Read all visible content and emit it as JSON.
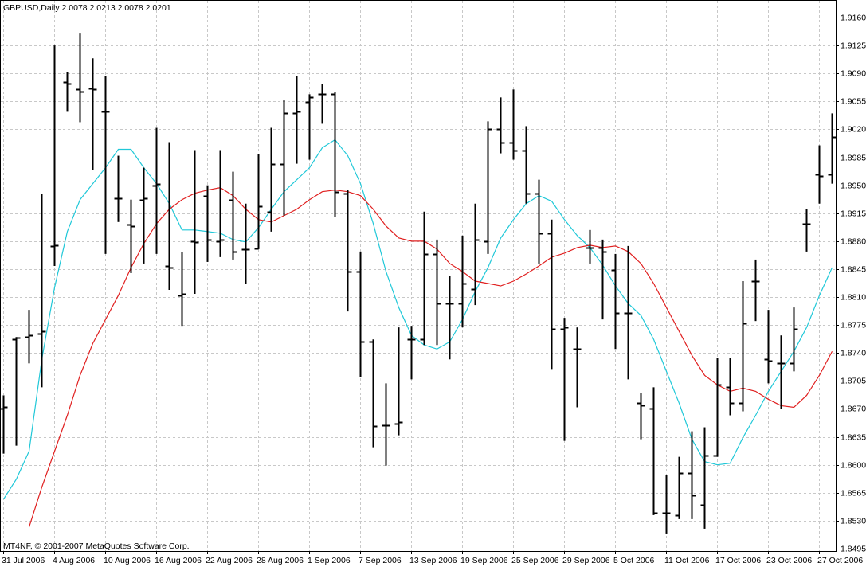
{
  "chart_data": {
    "type": "ohlc",
    "title": "GBPUSD,Daily  2.0078 2.0213 2.0078 2.0201",
    "credit": "MT4NF, © 2001-2007 MetaQuotes Software Corp.",
    "bar_color": "#000000",
    "grid": true,
    "categories": [
      "31 Jul 2006",
      null,
      null,
      null,
      "4 Aug 2006",
      null,
      null,
      null,
      "10 Aug 2006",
      null,
      null,
      null,
      "16 Aug 2006",
      null,
      null,
      null,
      "22 Aug 2006",
      null,
      null,
      null,
      "28 Aug 2006",
      null,
      null,
      null,
      "1 Sep 2006",
      null,
      null,
      null,
      "7 Sep 2006",
      null,
      null,
      null,
      "13 Sep 2006",
      null,
      null,
      null,
      "19 Sep 2006",
      null,
      null,
      null,
      "25 Sep 2006",
      null,
      null,
      null,
      "29 Sep 2006",
      null,
      null,
      null,
      "5 Oct 2006",
      null,
      null,
      null,
      "11 Oct 2006",
      null,
      null,
      null,
      "17 Oct 2006",
      null,
      null,
      null,
      "23 Oct 2006",
      null,
      null,
      null,
      "27 Oct 2006",
      null
    ],
    "open": [
      1.867,
      1.8757,
      1.876,
      1.8764,
      1.8874,
      1.9079,
      1.907,
      1.9071,
      1.9042,
      1.8934,
      1.8901,
      1.8932,
      1.895,
      1.8849,
      1.8812,
      1.888,
      1.8937,
      1.888,
      1.8932,
      1.887,
      1.8871,
      1.8917,
      1.8977,
      1.904,
      1.9054,
      1.9064,
      1.9064,
      1.894,
      1.8842,
      1.8754,
      1.865,
      1.8652,
      1.8757,
      1.8757,
      1.8864,
      1.8802,
      1.8802,
      1.882,
      1.888,
      1.902,
      1.9004,
      1.8994,
      1.894,
      1.889,
      1.877,
      1.8745,
      1.8872,
      1.8872,
      1.8844,
      1.879,
      1.8677,
      1.867,
      1.854,
      1.8537,
      1.859,
      1.855,
      1.8612,
      1.8697,
      1.8677,
      1.883,
      1.8732,
      1.8727,
      1.8727,
      1.8902,
      1.8964,
      1.8964
    ],
    "high": [
      1.8687,
      1.876,
      1.8794,
      1.8939,
      1.9125,
      1.9092,
      1.914,
      1.9109,
      1.9087,
      1.8987,
      1.8932,
      1.8972,
      1.9022,
      1.9004,
      1.8866,
      1.8994,
      1.895,
      1.8994,
      1.8967,
      1.8927,
      1.8989,
      1.9022,
      1.9057,
      1.9087,
      1.9064,
      1.9077,
      1.9067,
      1.8944,
      1.8867,
      1.8757,
      1.8702,
      1.8772,
      1.8774,
      1.8917,
      1.8882,
      1.8837,
      1.8887,
      1.8927,
      1.903,
      1.906,
      1.907,
      1.9024,
      1.8957,
      1.8907,
      1.8784,
      1.8772,
      1.8894,
      1.8882,
      1.8864,
      1.8874,
      1.869,
      1.8697,
      1.8587,
      1.861,
      1.8642,
      1.8647,
      1.8734,
      1.8734,
      1.883,
      1.8857,
      1.8794,
      1.8762,
      1.8797,
      1.892,
      1.9,
      1.904
    ],
    "low": [
      1.8614,
      1.8624,
      1.8727,
      1.8697,
      1.8849,
      1.9042,
      1.9029,
      1.8969,
      1.8864,
      1.8904,
      1.884,
      1.8852,
      1.8864,
      1.8819,
      1.8774,
      1.8814,
      1.8854,
      1.886,
      1.8857,
      1.8827,
      1.887,
      1.8892,
      1.8912,
      1.8977,
      1.8982,
      1.9027,
      1.891,
      1.8792,
      1.871,
      1.8622,
      1.8599,
      1.8637,
      1.8707,
      1.875,
      1.875,
      1.8732,
      1.8772,
      1.88,
      1.8864,
      1.899,
      1.8982,
      1.8927,
      1.8852,
      1.872,
      1.863,
      1.8672,
      1.8852,
      1.8782,
      1.8745,
      1.8707,
      1.8632,
      1.8537,
      1.8514,
      1.8532,
      1.8532,
      1.852,
      1.861,
      1.8662,
      1.8667,
      1.878,
      1.8702,
      1.867,
      1.8717,
      1.8867,
      1.8927,
      1.8952
    ],
    "close": [
      1.8672,
      1.8759,
      1.8762,
      1.8767,
      1.8875,
      1.9077,
      1.9067,
      1.907,
      1.9042,
      1.8934,
      1.8899,
      1.8934,
      1.8952,
      1.8847,
      1.8814,
      1.8879,
      1.8882,
      1.8882,
      1.8867,
      1.887,
      1.8924,
      1.8977,
      1.904,
      1.9042,
      1.906,
      1.9064,
      1.8942,
      1.8842,
      1.8754,
      1.8649,
      1.865,
      1.8654,
      1.8757,
      1.8864,
      1.8802,
      1.8802,
      1.8827,
      1.8882,
      1.902,
      1.9004,
      1.8994,
      1.894,
      1.889,
      1.877,
      1.8772,
      1.8745,
      1.8872,
      1.8867,
      1.879,
      1.879,
      1.8674,
      1.854,
      1.854,
      1.859,
      1.8562,
      1.8612,
      1.87,
      1.8677,
      1.8777,
      1.883,
      1.873,
      1.8727,
      1.877,
      1.8902,
      1.8962,
      1.901
    ],
    "lines": [
      {
        "color": "#20c8d8",
        "values": [
          1.8557,
          1.8582,
          1.8617,
          1.8732,
          1.8822,
          1.8892,
          1.8932,
          1.8952,
          1.8972,
          1.8995,
          1.8995,
          1.8972,
          1.8952,
          1.8927,
          1.8894,
          1.8894,
          1.8892,
          1.889,
          1.8882,
          1.8879,
          1.8897,
          1.892,
          1.8942,
          1.8957,
          1.8972,
          1.8997,
          1.9007,
          1.8987,
          1.8952,
          1.8902,
          1.8842,
          1.8797,
          1.8762,
          1.875,
          1.8745,
          1.8754,
          1.8782,
          1.8817,
          1.8847,
          1.8884,
          1.8907,
          1.8927,
          1.8937,
          1.893,
          1.8907,
          1.8887,
          1.8872,
          1.885,
          1.8824,
          1.8802,
          1.8787,
          1.8757,
          1.8717,
          1.8677,
          1.8632,
          1.8604,
          1.86,
          1.8602,
          1.8634,
          1.8662,
          1.8692,
          1.8717,
          1.8742,
          1.8772,
          1.8812,
          1.8847
        ]
      },
      {
        "color": "#e02020",
        "values": [
          null,
          null,
          1.8522,
          1.8572,
          1.8617,
          1.8662,
          1.8712,
          1.8752,
          1.8782,
          1.8812,
          1.8847,
          1.8877,
          1.8902,
          1.892,
          1.8932,
          1.894,
          1.8944,
          1.8947,
          1.8937,
          1.892,
          1.8907,
          1.8904,
          1.8912,
          1.892,
          1.8932,
          1.8942,
          1.8944,
          1.8942,
          1.8937,
          1.892,
          1.8899,
          1.8884,
          1.888,
          1.888,
          1.887,
          1.8852,
          1.8842,
          1.883,
          1.8827,
          1.8824,
          1.883,
          1.8839,
          1.8849,
          1.886,
          1.8865,
          1.8872,
          1.8875,
          1.8872,
          1.8874,
          1.8867,
          1.8852,
          1.8827,
          1.8797,
          1.8767,
          1.8737,
          1.8712,
          1.87,
          1.8692,
          1.8696,
          1.8692,
          1.8682,
          1.8674,
          1.8672,
          1.8687,
          1.8712,
          1.8742
        ]
      }
    ],
    "ylim": [
      1.8492,
      1.9177
    ],
    "yticks": [
      {
        "value": 1.916,
        "label": "1.9160"
      },
      {
        "value": 1.9125,
        "label": "1.9125"
      },
      {
        "value": 1.909,
        "label": "1.9090"
      },
      {
        "value": 1.9055,
        "label": "1.9055"
      },
      {
        "value": 1.902,
        "label": "1.9020"
      },
      {
        "value": 1.8985,
        "label": "1.8985"
      },
      {
        "value": 1.895,
        "label": "1.8950"
      },
      {
        "value": 1.8915,
        "label": "1.8915"
      },
      {
        "value": 1.888,
        "label": "1.8880"
      },
      {
        "value": 1.8845,
        "label": "1.8845"
      },
      {
        "value": 1.881,
        "label": "1.8810"
      },
      {
        "value": 1.8775,
        "label": "1.8775"
      },
      {
        "value": 1.874,
        "label": "1.8740"
      },
      {
        "value": 1.8705,
        "label": "1.8705"
      },
      {
        "value": 1.867,
        "label": "1.8670"
      },
      {
        "value": 1.8635,
        "label": "1.8635"
      },
      {
        "value": 1.86,
        "label": "1.8600"
      },
      {
        "value": 1.8565,
        "label": "1.8565"
      },
      {
        "value": 1.853,
        "label": "1.8530"
      },
      {
        "value": 1.8495,
        "label": "1.8495"
      }
    ]
  }
}
